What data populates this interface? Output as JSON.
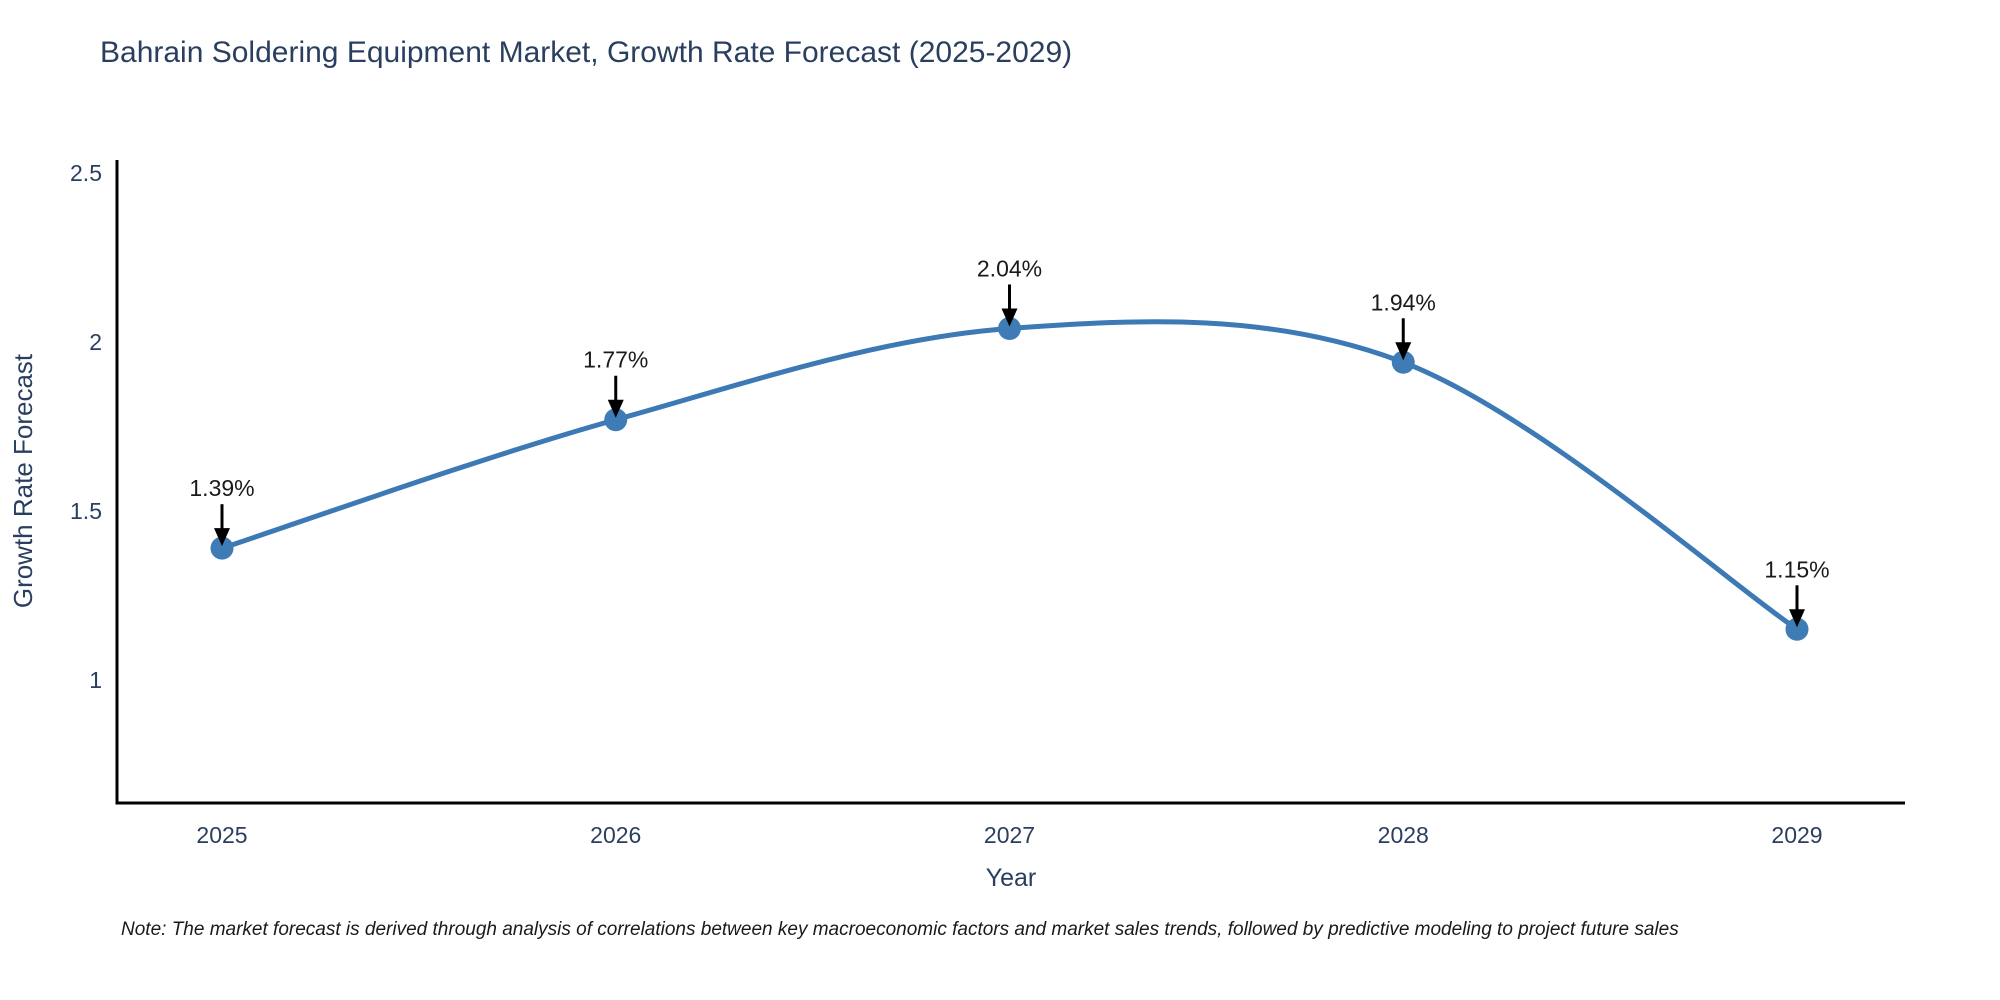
{
  "title": "Bahrain Soldering Equipment Market, Growth Rate Forecast (2025-2029)",
  "note": "Note: The market forecast is derived through analysis of correlations between key macroeconomic factors and market sales trends, followed by predictive modeling to project future sales",
  "chart_data": {
    "type": "line",
    "title": "Bahrain Soldering Equipment Market, Growth Rate Forecast (2025-2029)",
    "xlabel": "Year",
    "ylabel": "Growth Rate Forecast",
    "x": [
      2025,
      2026,
      2027,
      2028,
      2029
    ],
    "values": [
      1.39,
      1.77,
      2.04,
      1.94,
      1.15
    ],
    "point_labels": [
      "1.39%",
      "1.77%",
      "2.04%",
      "1.94%",
      "1.15%"
    ],
    "xticks": [
      "2025",
      "2026",
      "2027",
      "2028",
      "2029"
    ],
    "yticks": [
      "1",
      "1.5",
      "2",
      "2.5"
    ],
    "ytick_values": [
      1,
      1.5,
      2,
      2.5
    ],
    "ylim": [
      0.64,
      2.54
    ],
    "line_shape": "spline",
    "grid": false,
    "legend": "none",
    "colors": {
      "line": "#3d7ab5",
      "marker": "#3f7cb6",
      "axis": "#000000",
      "tick_text": "#2a3f5f",
      "axis_title_text": "#2a3f5f",
      "annotation_text": "#1a1a1a",
      "arrow": "#000000"
    }
  }
}
